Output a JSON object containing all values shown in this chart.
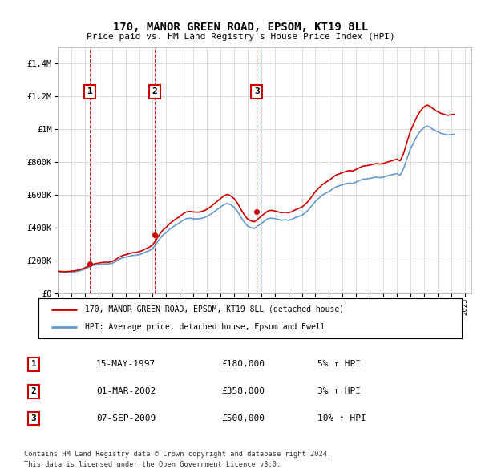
{
  "title": "170, MANOR GREEN ROAD, EPSOM, KT19 8LL",
  "subtitle": "Price paid vs. HM Land Registry's House Price Index (HPI)",
  "legend_line1": "170, MANOR GREEN ROAD, EPSOM, KT19 8LL (detached house)",
  "legend_line2": "HPI: Average price, detached house, Epsom and Ewell",
  "footnote1": "Contains HM Land Registry data © Crown copyright and database right 2024.",
  "footnote2": "This data is licensed under the Open Government Licence v3.0.",
  "sale_color": "#cc0000",
  "hpi_color": "#6699cc",
  "background_color": "#ffffff",
  "grid_color": "#dddddd",
  "ylim": [
    0,
    1500000
  ],
  "yticks": [
    0,
    200000,
    400000,
    600000,
    800000,
    1000000,
    1200000,
    1400000
  ],
  "ytick_labels": [
    "£0",
    "£200K",
    "£400K",
    "£600K",
    "£800K",
    "£1M",
    "£1.2M",
    "£1.4M"
  ],
  "sales": [
    {
      "date_num": 1997.37,
      "price": 180000,
      "label": "1"
    },
    {
      "date_num": 2002.16,
      "price": 358000,
      "label": "2"
    },
    {
      "date_num": 2009.67,
      "price": 500000,
      "label": "3"
    }
  ],
  "sale_table": [
    {
      "num": "1",
      "date": "15-MAY-1997",
      "price": "£180,000",
      "hpi": "5% ↑ HPI"
    },
    {
      "num": "2",
      "date": "01-MAR-2002",
      "price": "£358,000",
      "hpi": "3% ↑ HPI"
    },
    {
      "num": "3",
      "date": "07-SEP-2009",
      "price": "£500,000",
      "hpi": "10% ↑ HPI"
    }
  ],
  "hpi_data": {
    "years": [
      1995.0,
      1995.25,
      1995.5,
      1995.75,
      1996.0,
      1996.25,
      1996.5,
      1996.75,
      1997.0,
      1997.25,
      1997.5,
      1997.75,
      1998.0,
      1998.25,
      1998.5,
      1998.75,
      1999.0,
      1999.25,
      1999.5,
      1999.75,
      2000.0,
      2000.25,
      2000.5,
      2000.75,
      2001.0,
      2001.25,
      2001.5,
      2001.75,
      2002.0,
      2002.25,
      2002.5,
      2002.75,
      2003.0,
      2003.25,
      2003.5,
      2003.75,
      2004.0,
      2004.25,
      2004.5,
      2004.75,
      2005.0,
      2005.25,
      2005.5,
      2005.75,
      2006.0,
      2006.25,
      2006.5,
      2006.75,
      2007.0,
      2007.25,
      2007.5,
      2007.75,
      2008.0,
      2008.25,
      2008.5,
      2008.75,
      2009.0,
      2009.25,
      2009.5,
      2009.75,
      2010.0,
      2010.25,
      2010.5,
      2010.75,
      2011.0,
      2011.25,
      2011.5,
      2011.75,
      2012.0,
      2012.25,
      2012.5,
      2012.75,
      2013.0,
      2013.25,
      2013.5,
      2013.75,
      2014.0,
      2014.25,
      2014.5,
      2014.75,
      2015.0,
      2015.25,
      2015.5,
      2015.75,
      2016.0,
      2016.25,
      2016.5,
      2016.75,
      2017.0,
      2017.25,
      2017.5,
      2017.75,
      2018.0,
      2018.25,
      2018.5,
      2018.75,
      2019.0,
      2019.25,
      2019.5,
      2019.75,
      2020.0,
      2020.25,
      2020.5,
      2020.75,
      2021.0,
      2021.25,
      2021.5,
      2021.75,
      2022.0,
      2022.25,
      2022.5,
      2022.75,
      2023.0,
      2023.25,
      2023.5,
      2023.75,
      2024.0,
      2024.25
    ],
    "values": [
      130000,
      128000,
      127000,
      128000,
      130000,
      132000,
      135000,
      140000,
      148000,
      158000,
      168000,
      172000,
      175000,
      178000,
      180000,
      179000,
      182000,
      192000,
      205000,
      215000,
      220000,
      225000,
      230000,
      232000,
      235000,
      242000,
      252000,
      260000,
      272000,
      300000,
      330000,
      355000,
      370000,
      390000,
      405000,
      418000,
      430000,
      445000,
      455000,
      458000,
      455000,
      453000,
      455000,
      460000,
      468000,
      480000,
      495000,
      510000,
      525000,
      540000,
      548000,
      540000,
      525000,
      500000,
      465000,
      435000,
      410000,
      400000,
      395000,
      410000,
      425000,
      440000,
      455000,
      458000,
      455000,
      450000,
      445000,
      448000,
      445000,
      450000,
      460000,
      468000,
      475000,
      490000,
      510000,
      535000,
      560000,
      580000,
      598000,
      610000,
      620000,
      635000,
      648000,
      655000,
      662000,
      668000,
      672000,
      670000,
      678000,
      688000,
      695000,
      698000,
      700000,
      705000,
      708000,
      705000,
      708000,
      715000,
      720000,
      725000,
      730000,
      720000,
      760000,
      820000,
      880000,
      920000,
      960000,
      990000,
      1010000,
      1020000,
      1010000,
      995000,
      985000,
      975000,
      970000,
      965000,
      968000,
      970000
    ]
  },
  "sale_line_data": {
    "years": [
      1995.0,
      1995.25,
      1995.5,
      1995.75,
      1996.0,
      1996.25,
      1996.5,
      1996.75,
      1997.0,
      1997.25,
      1997.5,
      1997.75,
      1998.0,
      1998.25,
      1998.5,
      1998.75,
      1999.0,
      1999.25,
      1999.5,
      1999.75,
      2000.0,
      2000.25,
      2000.5,
      2000.75,
      2001.0,
      2001.25,
      2001.5,
      2001.75,
      2002.0,
      2002.25,
      2002.5,
      2002.75,
      2003.0,
      2003.25,
      2003.5,
      2003.75,
      2004.0,
      2004.25,
      2004.5,
      2004.75,
      2005.0,
      2005.25,
      2005.5,
      2005.75,
      2006.0,
      2006.25,
      2006.5,
      2006.75,
      2007.0,
      2007.25,
      2007.5,
      2007.75,
      2008.0,
      2008.25,
      2008.5,
      2008.75,
      2009.0,
      2009.25,
      2009.5,
      2009.75,
      2010.0,
      2010.25,
      2010.5,
      2010.75,
      2011.0,
      2011.25,
      2011.5,
      2011.75,
      2012.0,
      2012.25,
      2012.5,
      2012.75,
      2013.0,
      2013.25,
      2013.5,
      2013.75,
      2014.0,
      2014.25,
      2014.5,
      2014.75,
      2015.0,
      2015.25,
      2015.5,
      2015.75,
      2016.0,
      2016.25,
      2016.5,
      2016.75,
      2017.0,
      2017.25,
      2017.5,
      2017.75,
      2018.0,
      2018.25,
      2018.5,
      2018.75,
      2019.0,
      2019.25,
      2019.5,
      2019.75,
      2020.0,
      2020.25,
      2020.5,
      2020.75,
      2021.0,
      2021.25,
      2021.5,
      2021.75,
      2022.0,
      2022.25,
      2022.5,
      2022.75,
      2023.0,
      2023.25,
      2023.5,
      2023.75,
      2024.0,
      2024.25
    ],
    "values": [
      135000,
      133000,
      132000,
      133000,
      135000,
      137000,
      141000,
      147000,
      155000,
      165000,
      175000,
      180000,
      184000,
      188000,
      190000,
      189000,
      193000,
      204000,
      218000,
      229000,
      235000,
      241000,
      247000,
      249000,
      253000,
      261000,
      272000,
      281000,
      295000,
      325000,
      358000,
      385000,
      402000,
      424000,
      440000,
      455000,
      468000,
      485000,
      496000,
      499000,
      496000,
      494000,
      496000,
      502000,
      512000,
      526000,
      543000,
      560000,
      577000,
      594000,
      603000,
      594000,
      578000,
      550000,
      512000,
      479000,
      452000,
      441000,
      436000,
      452000,
      469000,
      486000,
      502000,
      506000,
      502000,
      496000,
      491000,
      494000,
      491000,
      497000,
      508000,
      517000,
      525000,
      542000,
      564000,
      592000,
      620000,
      642000,
      662000,
      676000,
      688000,
      704000,
      720000,
      728000,
      736000,
      743000,
      748000,
      746000,
      755000,
      766000,
      775000,
      778000,
      781000,
      787000,
      791000,
      788000,
      791000,
      799000,
      805000,
      811000,
      818000,
      808000,
      853000,
      921000,
      988000,
      1034000,
      1079000,
      1112000,
      1136000,
      1148000,
      1137000,
      1120000,
      1108000,
      1097000,
      1091000,
      1085000,
      1089000,
      1092000
    ]
  }
}
